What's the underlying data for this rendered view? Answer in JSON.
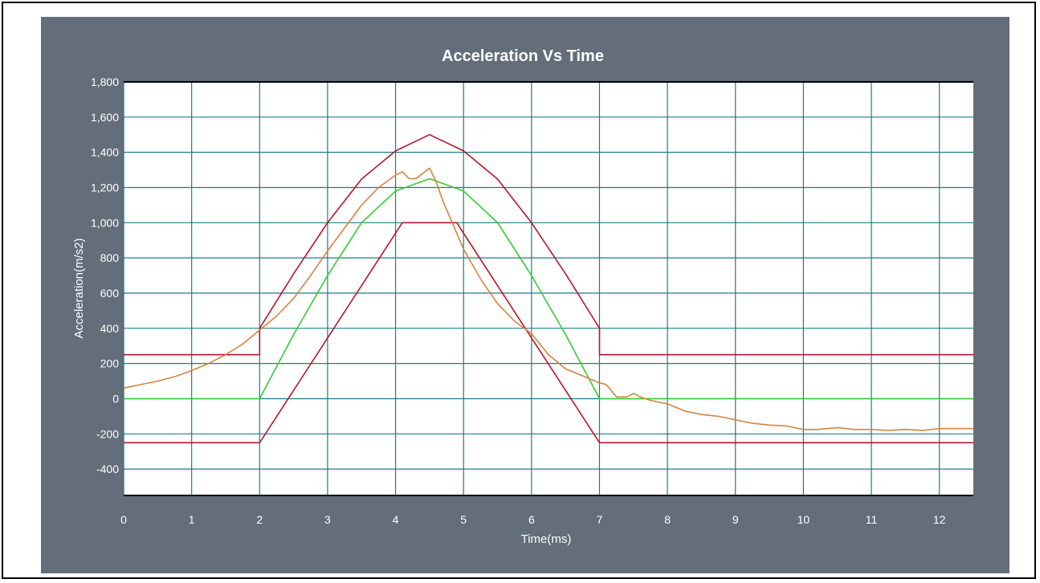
{
  "chart_data": {
    "type": "line",
    "title": "Acceleration Vs Time",
    "xlabel": "Time(ms)",
    "ylabel": "Acceleration(m/s2)",
    "xlim": [
      0,
      12.5
    ],
    "ylim": [
      -550,
      1800
    ],
    "x_ticks": [
      0,
      1,
      2,
      3,
      4,
      5,
      6,
      7,
      8,
      9,
      10,
      11,
      12
    ],
    "y_ticks": [
      -400,
      -200,
      0,
      200,
      400,
      600,
      800,
      1000,
      1200,
      1400,
      1600,
      1800
    ],
    "x_tick_labels": [
      "0",
      "1",
      "2",
      "3",
      "4",
      "5",
      "6",
      "7",
      "8",
      "9",
      "10",
      "11",
      "12"
    ],
    "y_tick_labels": [
      "-400",
      "-200",
      "0",
      "200",
      "400",
      "600",
      "800",
      "1,000",
      "1,200",
      "1,400",
      "1,600",
      "1,800"
    ],
    "grid": true,
    "legend": "none",
    "colors": {
      "panel": "#646d7a",
      "plot_bg": "#ffffff",
      "grid": "#1f7a86",
      "upper_tolerance": "#b5172a",
      "lower_tolerance": "#b5172a",
      "nominal": "#33cc33",
      "measured": "#d98240"
    },
    "series": [
      {
        "x": [
          0,
          2,
          2,
          2.5,
          3,
          3.5,
          4,
          4.5,
          5,
          5.5,
          6,
          6.5,
          7,
          7,
          12.5
        ],
        "y": [
          250,
          250,
          400,
          710,
          1000,
          1248,
          1408,
          1500,
          1408,
          1248,
          1000,
          710,
          400,
          250,
          250
        ]
      },
      {
        "x": [
          0,
          2,
          4.1,
          4.9,
          7,
          12.5
        ],
        "y": [
          -250,
          -250,
          1000,
          1000,
          -250,
          -250
        ]
      },
      {
        "x": [
          0,
          2,
          2.5,
          3,
          3.5,
          4,
          4.5,
          5,
          5.5,
          6,
          6.5,
          7,
          12.5
        ],
        "y": [
          0,
          0,
          365,
          700,
          1000,
          1180,
          1250,
          1180,
          1000,
          700,
          365,
          0,
          0
        ]
      },
      {
        "x": [
          0,
          0.25,
          0.5,
          0.75,
          1,
          1.25,
          1.5,
          1.75,
          2,
          2.25,
          2.5,
          2.75,
          3,
          3.25,
          3.5,
          3.75,
          4,
          4.1,
          4.2,
          4.3,
          4.4,
          4.5,
          4.6,
          4.7,
          4.8,
          5,
          5.25,
          5.5,
          5.75,
          6,
          6.25,
          6.5,
          6.75,
          7,
          7.1,
          7.25,
          7.4,
          7.5,
          7.6,
          7.75,
          8,
          8.25,
          8.5,
          8.75,
          9,
          9.25,
          9.5,
          9.75,
          10,
          10.2,
          10.5,
          10.75,
          11,
          11.25,
          11.5,
          11.75,
          12,
          12.25,
          12.5
        ],
        "y": [
          60,
          80,
          100,
          125,
          160,
          200,
          250,
          310,
          390,
          470,
          570,
          700,
          840,
          970,
          1100,
          1200,
          1270,
          1290,
          1250,
          1250,
          1280,
          1310,
          1230,
          1120,
          1030,
          850,
          680,
          540,
          440,
          370,
          250,
          170,
          130,
          90,
          80,
          10,
          10,
          30,
          10,
          -10,
          -30,
          -70,
          -90,
          -100,
          -120,
          -140,
          -150,
          -155,
          -175,
          -175,
          -165,
          -175,
          -175,
          -180,
          -175,
          -180,
          -170,
          -170,
          -170
        ]
      }
    ]
  }
}
